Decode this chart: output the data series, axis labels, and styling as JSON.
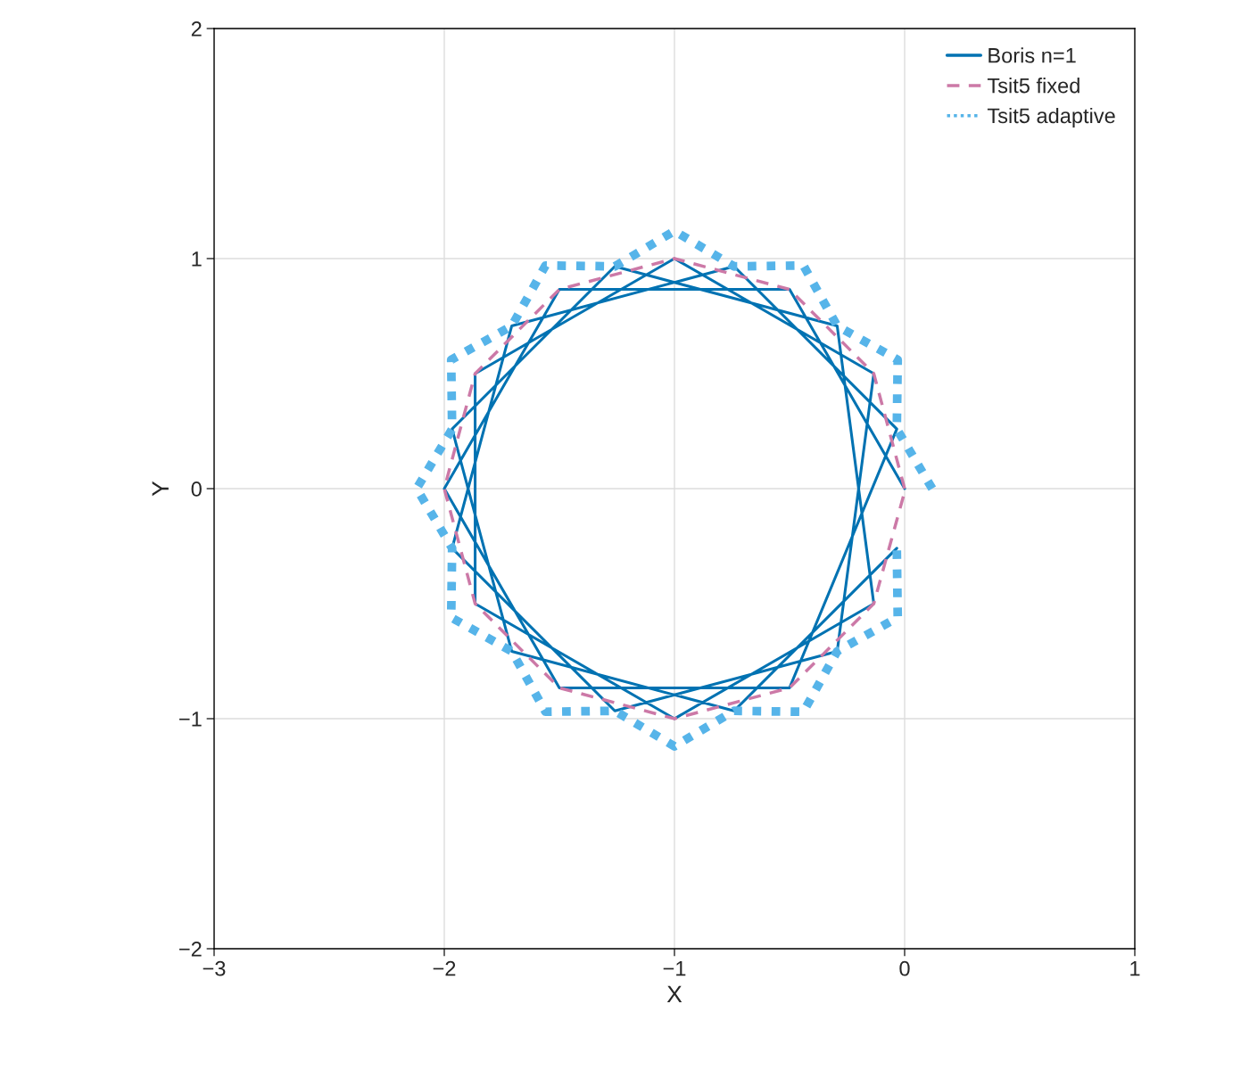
{
  "chart_data": {
    "type": "line",
    "xlabel": "X",
    "ylabel": "Y",
    "xlim": [
      -3,
      1
    ],
    "ylim": [
      -2,
      2
    ],
    "xticks": [
      {
        "value": -3,
        "label": "−3"
      },
      {
        "value": -2,
        "label": "−2"
      },
      {
        "value": -1,
        "label": "−1"
      },
      0,
      1
    ],
    "yticks": [
      {
        "value": -2,
        "label": "−2"
      },
      {
        "value": -1,
        "label": "−1"
      },
      0,
      1,
      2
    ],
    "grid": true,
    "legend": "top right",
    "series": [
      {
        "name": "Boris n=1",
        "color": "#0072b2",
        "line_style": "solid",
        "x": [
          0,
          -0.5,
          -1.5,
          -2,
          -1.5,
          -0.5,
          -0.034,
          -0.741,
          -1.707,
          -1.966,
          -1.259,
          -0.293,
          -0.134,
          -1,
          -1.866,
          -1.866,
          -1,
          -0.134,
          -0.293,
          -1.259,
          -1.966,
          -1.707,
          -0.741,
          -0.034
        ],
        "values": [
          0,
          0.866,
          0.866,
          0,
          -0.866,
          -0.866,
          0.259,
          0.966,
          0.707,
          -0.259,
          -0.966,
          -0.707,
          0.5,
          1,
          0.5,
          -0.5,
          -1,
          -0.5,
          0.707,
          0.966,
          0.259,
          -0.707,
          -0.966,
          -0.259
        ]
      },
      {
        "name": "Tsit5 fixed",
        "color": "#cc79a7",
        "line_style": "dashed",
        "x": [
          0,
          -0.134,
          -0.5,
          -1,
          -1.5,
          -1.866,
          -2,
          -1.866,
          -1.5,
          -1,
          -0.5,
          -0.134,
          0.001
        ],
        "values": [
          0,
          0.5,
          0.866,
          1,
          0.866,
          0.5,
          0,
          -0.5,
          -0.866,
          -1,
          -0.866,
          -0.5,
          -0.01
        ]
      },
      {
        "name": "Tsit5 adaptive",
        "color": "#56b4e9",
        "line_style": "dotted",
        "x": [
          0.12,
          -0.034,
          -0.03,
          -0.293,
          -0.44,
          -0.741,
          -1,
          -1.259,
          -1.56,
          -1.707,
          -1.97,
          -1.966,
          -2.12,
          -1.966,
          -1.97,
          -1.707,
          -1.56,
          -1.259,
          -1,
          -0.741,
          -0.44,
          -0.293,
          -0.03,
          -0.034
        ],
        "values": [
          0,
          0.259,
          0.56,
          0.707,
          0.97,
          0.966,
          1.12,
          0.966,
          0.97,
          0.707,
          0.56,
          0.259,
          0,
          -0.259,
          -0.56,
          -0.707,
          -0.97,
          -0.966,
          -1.12,
          -0.966,
          -0.97,
          -0.707,
          -0.56,
          -0.259
        ]
      }
    ]
  }
}
